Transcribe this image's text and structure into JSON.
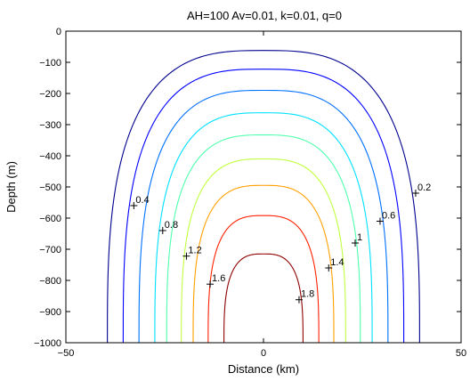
{
  "chart_data": {
    "type": "contour",
    "title": "AH=100 Av=0.01, k=0.01, q=0",
    "xlabel": "Distance (km)",
    "ylabel": "Depth (m)",
    "xlim": [
      -50,
      50
    ],
    "ylim": [
      -1000,
      0
    ],
    "xticks": [
      -50,
      0,
      50
    ],
    "yticks": [
      0,
      -100,
      -200,
      -300,
      -400,
      -500,
      -600,
      -700,
      -800,
      -900,
      -1000
    ],
    "grid": false,
    "levels": [
      {
        "value": 0.2,
        "label": "0.2",
        "color": "#00008f",
        "half_width": 39.5,
        "top_depth": -62,
        "marker": [
          38.5,
          -520
        ]
      },
      {
        "value": 0.4,
        "label": "0.4",
        "color": "#0000ff",
        "half_width": 35.5,
        "top_depth": -122,
        "marker": [
          -32.8,
          -560
        ]
      },
      {
        "value": 0.6,
        "label": "0.6",
        "color": "#0070ff",
        "half_width": 31.5,
        "top_depth": -190,
        "marker": [
          29.5,
          -610
        ]
      },
      {
        "value": 0.8,
        "label": "0.8",
        "color": "#00e0ff",
        "half_width": 27.5,
        "top_depth": -262,
        "marker": [
          -25.5,
          -640
        ]
      },
      {
        "value": 1,
        "label": "1",
        "color": "#50ffaf",
        "half_width": 24.5,
        "top_depth": -333,
        "marker": [
          23.2,
          -680
        ]
      },
      {
        "value": 1.2,
        "label": "1.2",
        "color": "#c0ff3f",
        "half_width": 20.8,
        "top_depth": -410,
        "marker": [
          -19.5,
          -722
        ]
      },
      {
        "value": 1.4,
        "label": "1.4",
        "color": "#ffa000",
        "half_width": 17.8,
        "top_depth": -495,
        "marker": [
          16.5,
          -760
        ]
      },
      {
        "value": 1.6,
        "label": "1.6",
        "color": "#ff2000",
        "half_width": 14.0,
        "top_depth": -592,
        "marker": [
          -13.5,
          -812
        ]
      },
      {
        "value": 1.8,
        "label": "1.8",
        "color": "#8f0000",
        "half_width": 10.0,
        "top_depth": -715,
        "marker": [
          9.0,
          -862
        ]
      }
    ]
  }
}
